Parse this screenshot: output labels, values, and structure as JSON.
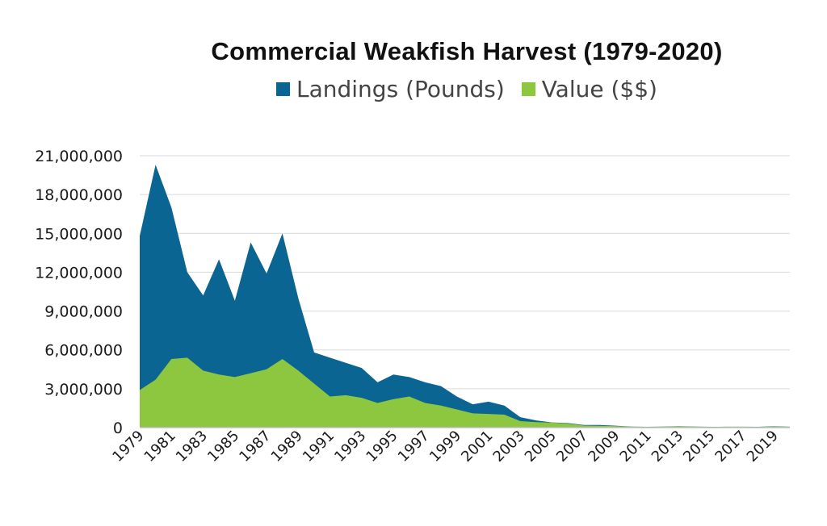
{
  "colors": {
    "landings": "#0b6592",
    "value": "#8cc73f",
    "grid": "#d9d9d9",
    "axis": "#bfbfbf",
    "text": "#1a1a1a"
  },
  "chart_data": {
    "type": "area",
    "title": "Commercial Weakfish Harvest (1979-2020)",
    "xlabel": "",
    "ylabel": "",
    "ylim": [
      0,
      21000000
    ],
    "yticks": [
      0,
      3000000,
      6000000,
      9000000,
      12000000,
      15000000,
      18000000,
      21000000
    ],
    "ytick_labels": [
      "0",
      "3,000,000",
      "6,000,000",
      "9,000,000",
      "12,000,000",
      "15,000,000",
      "18,000,000",
      "21,000,000"
    ],
    "xtick_labels": [
      "1979",
      "1981",
      "1983",
      "1985",
      "1987",
      "1989",
      "1991",
      "1993",
      "1995",
      "1997",
      "1999",
      "2001",
      "2003",
      "2005",
      "2007",
      "2009",
      "2011",
      "2013",
      "2015",
      "2017",
      "2019"
    ],
    "grid": true,
    "legend_position": "top",
    "x": [
      1979,
      1980,
      1981,
      1982,
      1983,
      1984,
      1985,
      1986,
      1987,
      1988,
      1989,
      1990,
      1991,
      1992,
      1993,
      1994,
      1995,
      1996,
      1997,
      1998,
      1999,
      2000,
      2001,
      2002,
      2003,
      2004,
      2005,
      2006,
      2007,
      2008,
      2009,
      2010,
      2011,
      2012,
      2013,
      2014,
      2015,
      2016,
      2017,
      2018,
      2019,
      2020
    ],
    "series": [
      {
        "name": "Landings (Pounds)",
        "values": [
          14800000,
          20300000,
          17000000,
          12000000,
          10200000,
          13000000,
          9800000,
          14300000,
          11900000,
          15000000,
          10000000,
          5800000,
          5400000,
          5000000,
          4600000,
          3500000,
          4100000,
          3900000,
          3500000,
          3200000,
          2400000,
          1800000,
          2000000,
          1700000,
          800000,
          550000,
          400000,
          350000,
          200000,
          200000,
          150000,
          80000,
          60000,
          80000,
          110000,
          80000,
          60000,
          70000,
          70000,
          60000,
          100000,
          70000
        ]
      },
      {
        "name": "Value ($$)",
        "values": [
          2900000,
          3700000,
          5300000,
          5400000,
          4400000,
          4100000,
          3900000,
          4200000,
          4500000,
          5300000,
          4400000,
          3400000,
          2400000,
          2500000,
          2300000,
          1900000,
          2200000,
          2400000,
          1900000,
          1700000,
          1400000,
          1100000,
          1050000,
          1000000,
          500000,
          420000,
          380000,
          310000,
          160000,
          140000,
          120000,
          70000,
          50000,
          70000,
          90000,
          70000,
          50000,
          60000,
          60000,
          50000,
          80000,
          60000
        ]
      }
    ]
  }
}
